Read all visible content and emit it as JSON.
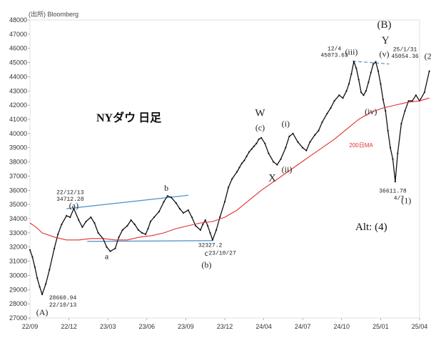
{
  "chart_data": {
    "type": "line",
    "title": "NYダウ 日足",
    "source": "(出所) Bloomberg",
    "ylim": [
      27000,
      48000
    ],
    "y_ticks": [
      27000,
      28000,
      29000,
      30000,
      31000,
      32000,
      33000,
      34000,
      35000,
      36000,
      37000,
      38000,
      39000,
      40000,
      41000,
      42000,
      43000,
      44000,
      45000,
      46000,
      47000,
      48000
    ],
    "x_categories": [
      "22/09",
      "22/12",
      "23/03",
      "23/06",
      "23/09",
      "23/12",
      "24/04",
      "24/07",
      "24/10",
      "25/01",
      "25/04"
    ],
    "series": [
      {
        "name": "NYダウ",
        "color": "#111111",
        "x": [
          0,
          0.2,
          0.4,
          0.6,
          0.8,
          1.0,
          1.3,
          1.6,
          2.0,
          2.3,
          2.6,
          3.0,
          3.3,
          3.6,
          4.0,
          4.3,
          4.6,
          5.0,
          5.3,
          5.6,
          6.0,
          6.3,
          6.6,
          7.0,
          7.3,
          7.6,
          8.0,
          8.3,
          8.6,
          8.9,
          9.2,
          9.5,
          9.7,
          9.9,
          10.2,
          10.6,
          11.0,
          11.3,
          11.6,
          12.0,
          12.3,
          12.6,
          13.0,
          13.3,
          13.6,
          14.0,
          14.2,
          14.4,
          14.6,
          14.8,
          15.0,
          15.3,
          15.6,
          16.0,
          16.3,
          16.6,
          17.0,
          17.2,
          17.4,
          17.6,
          17.8,
          18.0,
          18.2,
          18.4,
          18.6,
          18.8,
          19.0,
          19.3,
          19.6,
          20.0,
          20.3,
          20.6,
          21.0,
          21.3,
          21.6,
          22.0,
          22.4,
          22.7,
          23.0,
          23.4,
          23.7,
          24.0,
          24.4,
          24.7,
          25.0,
          25.4,
          25.7,
          26.0,
          26.2,
          26.4,
          26.6,
          26.8,
          27.0,
          27.2,
          27.4,
          27.6,
          27.8,
          28.0,
          28.2,
          28.4,
          28.6,
          28.8,
          29.0,
          29.2,
          29.4,
          29.6,
          29.8,
          30.0,
          30.2,
          30.5,
          30.8,
          31.1,
          31.4,
          31.7,
          32.0,
          32.4,
          32.8
        ],
        "y": [
          31800,
          31300,
          30600,
          29800,
          29200,
          28660,
          29400,
          30400,
          31900,
          32900,
          33600,
          34200,
          34100,
          34712,
          33900,
          33400,
          33800,
          34100,
          33700,
          33000,
          32600,
          32000,
          31700,
          31900,
          32700,
          33200,
          33500,
          33900,
          33600,
          33200,
          33000,
          32900,
          33300,
          33800,
          34100,
          34500,
          35200,
          35600,
          35500,
          35100,
          34700,
          34400,
          34600,
          34100,
          33500,
          33200,
          33600,
          33900,
          33500,
          33000,
          32500,
          33200,
          34100,
          35200,
          36200,
          36800,
          37300,
          37600,
          37900,
          38100,
          38400,
          38700,
          38900,
          39100,
          39300,
          39600,
          39700,
          39300,
          38600,
          38000,
          37800,
          38200,
          39000,
          39800,
          40000,
          39400,
          39000,
          38800,
          39400,
          39900,
          40200,
          40800,
          41400,
          41800,
          42300,
          42700,
          42500,
          43000,
          43500,
          44200,
          45073,
          44600,
          43800,
          42900,
          42700,
          43000,
          43600,
          44300,
          44900,
          45054,
          44400,
          43500,
          42400,
          41600,
          40200,
          39000,
          38200,
          36612,
          38600,
          40700,
          41600,
          42300,
          42300,
          42700,
          42300,
          42900,
          44400
        ]
      },
      {
        "name": "200日MA",
        "color": "#e03030",
        "x": [
          0,
          0.5,
          1.0,
          2.0,
          3.0,
          4.0,
          5.0,
          6.0,
          7.0,
          8.0,
          9.0,
          10.0,
          11.0,
          12.0,
          13.0,
          14.0,
          15.0,
          16.0,
          17.0,
          18.0,
          19.0,
          20.0,
          21.0,
          22.0,
          23.0,
          24.0,
          25.0,
          26.0,
          27.0,
          28.0,
          29.0,
          30.0,
          31.0,
          32.0,
          32.8
        ],
        "y": [
          33700,
          33400,
          33000,
          32700,
          32500,
          32500,
          32600,
          32600,
          32500,
          32500,
          32700,
          32800,
          33000,
          33300,
          33500,
          33700,
          33800,
          34100,
          34600,
          35300,
          36000,
          36600,
          37200,
          37800,
          38400,
          39000,
          39600,
          40300,
          41000,
          41500,
          41800,
          42000,
          42200,
          42300,
          42500
        ]
      }
    ],
    "trendlines": [
      {
        "from": [
          3.0,
          34700
        ],
        "to": [
          13.0,
          35650
        ],
        "color": "#4a90c8",
        "style": "solid"
      },
      {
        "from": [
          4.7,
          32400
        ],
        "to": [
          15.0,
          32450
        ],
        "color": "#4a90c8",
        "style": "solid"
      },
      {
        "from": [
          26.5,
          45100
        ],
        "to": [
          29.5,
          44900
        ],
        "color": "#4a90c8",
        "style": "dashed"
      }
    ],
    "annotations": [
      {
        "text": "(A)",
        "x": 1.0,
        "y": 27200,
        "kind": "wave"
      },
      {
        "text": "28660.94",
        "x": 2.7,
        "y": 28320,
        "kind": "note"
      },
      {
        "text": "22/10/13",
        "x": 2.7,
        "y": 27800,
        "kind": "note"
      },
      {
        "text": "22/12/13",
        "x": 3.3,
        "y": 35750,
        "kind": "note"
      },
      {
        "text": "34712.28",
        "x": 3.3,
        "y": 35270,
        "kind": "note"
      },
      {
        "text": "(a)",
        "x": 3.6,
        "y": 34720,
        "kind": "wave"
      },
      {
        "text": "a",
        "x": 6.3,
        "y": 31150,
        "kind": "wave"
      },
      {
        "text": "b",
        "x": 11.2,
        "y": 35960,
        "kind": "wave"
      },
      {
        "text": "32327.2",
        "x": 14.8,
        "y": 32020,
        "kind": "note"
      },
      {
        "text": "c",
        "x": 14.5,
        "y": 31380,
        "kind": "wave"
      },
      {
        "text": "23/10/27",
        "x": 15.8,
        "y": 31450,
        "kind": "note"
      },
      {
        "text": "(b)",
        "x": 14.5,
        "y": 30560,
        "kind": "wave"
      },
      {
        "text": "W",
        "x": 18.9,
        "y": 41230,
        "kind": "wave-big"
      },
      {
        "text": "(c)",
        "x": 18.9,
        "y": 40230,
        "kind": "wave"
      },
      {
        "text": "(i)",
        "x": 21.0,
        "y": 40500,
        "kind": "wave"
      },
      {
        "text": "X",
        "x": 19.9,
        "y": 36650,
        "kind": "wave-big"
      },
      {
        "text": "(ii)",
        "x": 21.1,
        "y": 37280,
        "kind": "wave"
      },
      {
        "text": "200日MA",
        "x": 27.2,
        "y": 39040,
        "kind": "ma"
      },
      {
        "text": "12/4",
        "x": 25.0,
        "y": 45850,
        "kind": "note"
      },
      {
        "text": "45073.63",
        "x": 25.0,
        "y": 45400,
        "kind": "note"
      },
      {
        "text": "(iii)",
        "x": 26.4,
        "y": 45550,
        "kind": "wave"
      },
      {
        "text": "(iv)",
        "x": 28.0,
        "y": 41350,
        "kind": "wave"
      },
      {
        "text": "(B)",
        "x": 29.1,
        "y": 47450,
        "kind": "wave-big"
      },
      {
        "text": "Y",
        "x": 29.2,
        "y": 46350,
        "kind": "wave-big"
      },
      {
        "text": "(v)",
        "x": 29.1,
        "y": 45400,
        "kind": "wave"
      },
      {
        "text": "25/1/31",
        "x": 30.8,
        "y": 45800,
        "kind": "note"
      },
      {
        "text": "45054.36",
        "x": 30.8,
        "y": 45330,
        "kind": "note"
      },
      {
        "text": "36611.78",
        "x": 29.8,
        "y": 35850,
        "kind": "note"
      },
      {
        "text": "4/7",
        "x": 30.3,
        "y": 35340,
        "kind": "note"
      },
      {
        "text": "(1)",
        "x": 30.9,
        "y": 35080,
        "kind": "wave"
      },
      {
        "text": "(2)",
        "x": 32.8,
        "y": 45250,
        "kind": "wave"
      }
    ],
    "alt_label": "Alt: (4)"
  }
}
